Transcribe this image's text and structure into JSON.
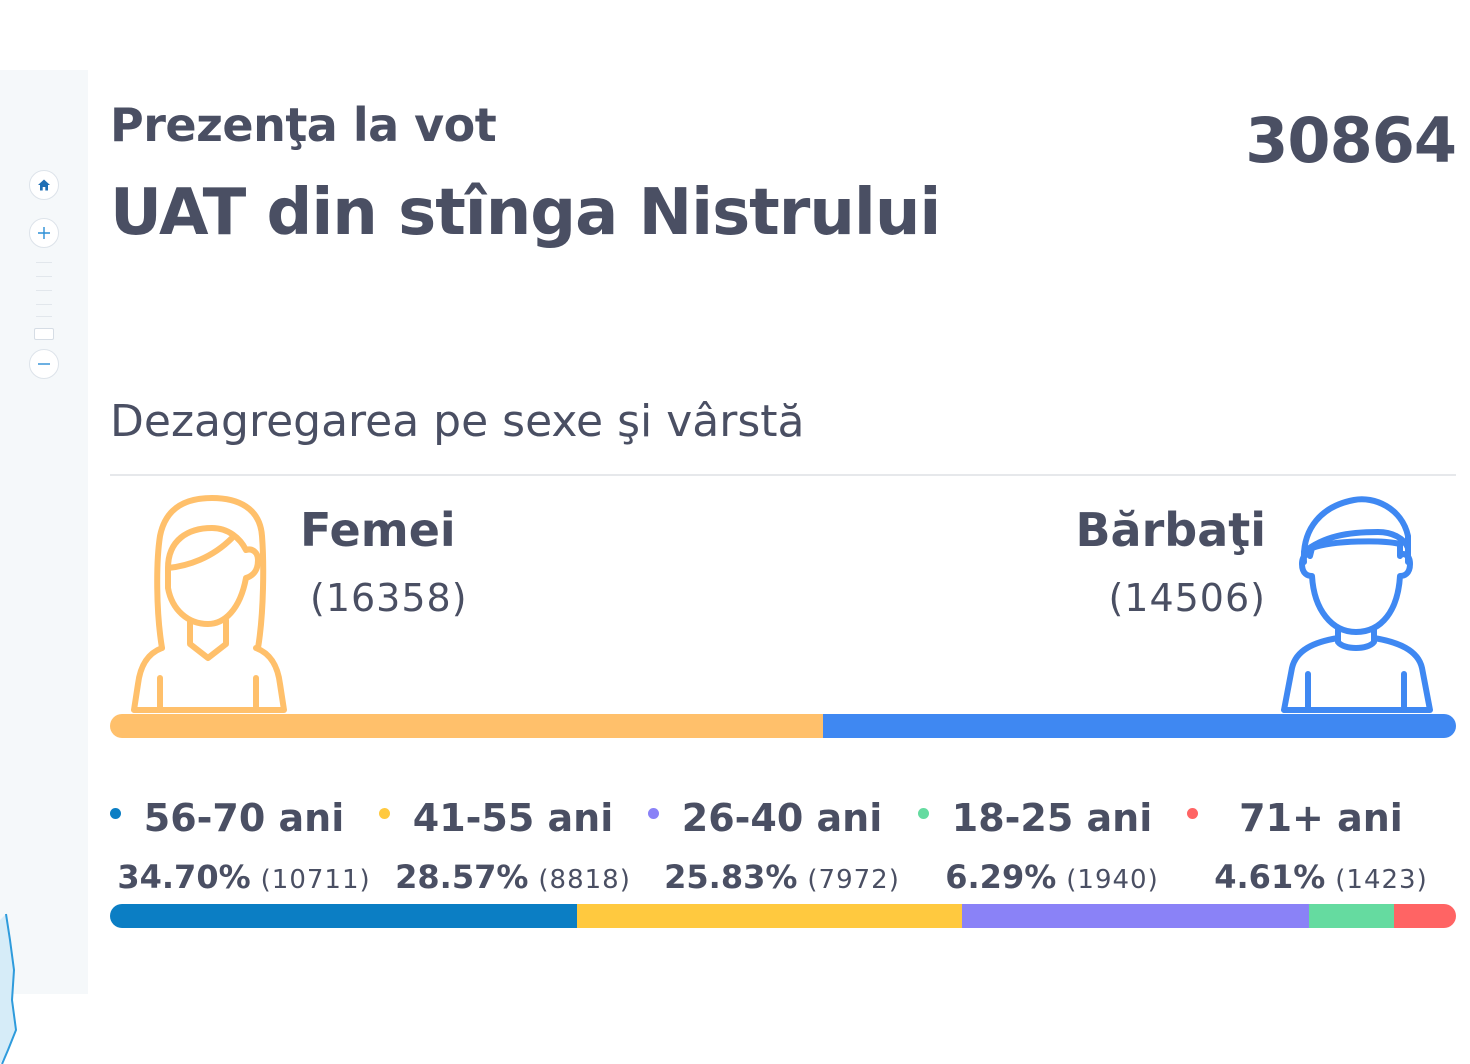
{
  "header": {
    "subtitle": "Prezenţa la vot",
    "title": "UAT din stînga Nistrului",
    "total": "30864"
  },
  "zoom_controls": {
    "home_icon": "home-icon",
    "zoom_in_icon": "plus-icon",
    "zoom_out_icon": "minus-icon"
  },
  "section": {
    "title": "Dezagregarea pe sexe şi vârstă"
  },
  "gender": {
    "female": {
      "label": "Femei",
      "count": "(16358)",
      "value": 16358,
      "color": "#ffc06b",
      "icon": "female-person-icon"
    },
    "male": {
      "label": "Bărbaţi",
      "count": "(14506)",
      "value": 14506,
      "color": "#3f88f2",
      "icon": "male-person-icon"
    }
  },
  "age_groups": [
    {
      "label": "56-70 ani",
      "percent": "34.70%",
      "count": "(10711)",
      "value": 34.7,
      "color": "#0b7ec4"
    },
    {
      "label": "41-55 ani",
      "percent": "28.57%",
      "count": "(8818)",
      "value": 28.57,
      "color": "#ffc93f"
    },
    {
      "label": "26-40 ani",
      "percent": "25.83%",
      "count": "(7972)",
      "value": 25.83,
      "color": "#8a82f7"
    },
    {
      "label": "18-25 ani",
      "percent": "6.29%",
      "count": "(1940)",
      "value": 6.29,
      "color": "#65dba0"
    },
    {
      "label": "71+ ani",
      "percent": "4.61%",
      "count": "(1423)",
      "value": 4.61,
      "color": "#ff6464"
    }
  ]
}
